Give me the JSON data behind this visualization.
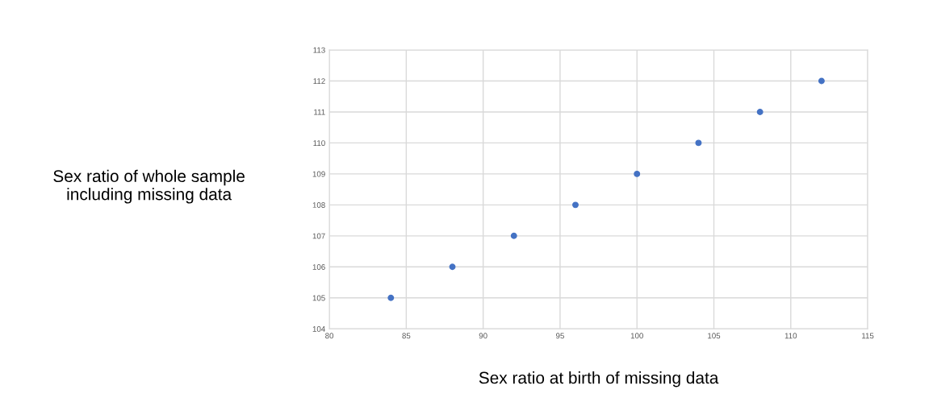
{
  "chart_data": {
    "type": "scatter",
    "xlabel": "Sex ratio at birth of missing data",
    "ylabel": "Sex ratio of whole sample\nincluding missing data",
    "x": [
      84,
      88,
      92,
      96,
      100,
      104,
      108,
      112
    ],
    "values": [
      105,
      106,
      107,
      108,
      109,
      110,
      111,
      112
    ],
    "color": "#4472c4",
    "marker": "circle",
    "xlim": [
      80,
      115
    ],
    "xticks": [
      80,
      85,
      90,
      95,
      100,
      105,
      110,
      115
    ],
    "ylim": [
      104,
      113
    ],
    "yticks": [
      104,
      105,
      106,
      107,
      108,
      109,
      110,
      111,
      112,
      113
    ],
    "grid": true
  }
}
